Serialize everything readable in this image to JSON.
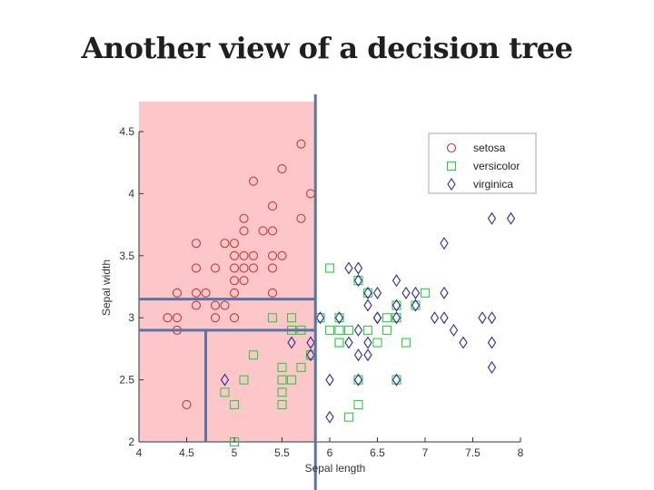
{
  "slide": {
    "title": "Another view of a decision tree"
  },
  "colors": {
    "setosa": "#c0393b",
    "versicolor": "#2ecc40",
    "virginica": "#2c2c9a",
    "region": "#fdc7c9",
    "split": "#5a74a6"
  },
  "chart_data": {
    "type": "scatter",
    "title": "Another view of a decision tree",
    "xlabel": "Sepal length",
    "ylabel": "Sepal width",
    "xlim": [
      4,
      8
    ],
    "ylim": [
      2,
      4.5
    ],
    "xticks": [
      "4",
      "4.5",
      "5",
      "5.5",
      "6",
      "6.5",
      "7",
      "7.5",
      "8"
    ],
    "yticks": [
      "2",
      "2.5",
      "3",
      "3.5",
      "4",
      "4.5"
    ],
    "legend_position": "top-right",
    "region": {
      "label": "setosa region",
      "x": [
        4,
        5.85
      ],
      "y": [
        2,
        4.5
      ]
    },
    "splits": [
      {
        "orientation": "vertical",
        "x": 5.85,
        "y_from": 1.6,
        "y_to": 4.75
      },
      {
        "orientation": "horizontal",
        "y": 3.15,
        "x_from": 4,
        "x_to": 5.85
      },
      {
        "orientation": "horizontal",
        "y": 2.9,
        "x_from": 4,
        "x_to": 5.85
      },
      {
        "orientation": "vertical",
        "x": 4.7,
        "y_from": 2,
        "y_to": 2.9
      }
    ],
    "series": [
      {
        "name": "setosa",
        "marker": "circle",
        "points": [
          [
            5.7,
            4.4
          ],
          [
            5.5,
            4.2
          ],
          [
            5.2,
            4.1
          ],
          [
            5.8,
            4.0
          ],
          [
            5.4,
            3.9
          ],
          [
            5.7,
            3.8
          ],
          [
            5.1,
            3.8
          ],
          [
            5.4,
            3.7
          ],
          [
            5.3,
            3.7
          ],
          [
            5.1,
            3.7
          ],
          [
            5.0,
            3.6
          ],
          [
            4.9,
            3.6
          ],
          [
            4.6,
            3.6
          ],
          [
            5.1,
            3.5
          ],
          [
            5.0,
            3.5
          ],
          [
            5.2,
            3.5
          ],
          [
            5.4,
            3.5
          ],
          [
            5.5,
            3.5
          ],
          [
            5.4,
            3.4
          ],
          [
            5.0,
            3.4
          ],
          [
            4.8,
            3.4
          ],
          [
            4.6,
            3.4
          ],
          [
            5.1,
            3.4
          ],
          [
            5.2,
            3.4
          ],
          [
            5.1,
            3.3
          ],
          [
            5.0,
            3.3
          ],
          [
            5.0,
            3.2
          ],
          [
            4.7,
            3.2
          ],
          [
            4.6,
            3.2
          ],
          [
            4.4,
            3.2
          ],
          [
            5.4,
            3.2
          ],
          [
            4.9,
            3.1
          ],
          [
            4.6,
            3.1
          ],
          [
            4.8,
            3.1
          ],
          [
            5.0,
            3.0
          ],
          [
            4.4,
            3.0
          ],
          [
            4.3,
            3.0
          ],
          [
            4.8,
            3.0
          ],
          [
            4.4,
            2.9
          ],
          [
            4.5,
            2.3
          ]
        ]
      },
      {
        "name": "versicolor",
        "marker": "square",
        "points": [
          [
            6.0,
            3.4
          ],
          [
            6.3,
            3.3
          ],
          [
            6.4,
            3.2
          ],
          [
            6.9,
            3.1
          ],
          [
            6.7,
            3.1
          ],
          [
            6.6,
            3.0
          ],
          [
            6.7,
            3.0
          ],
          [
            5.9,
            3.0
          ],
          [
            5.6,
            3.0
          ],
          [
            5.4,
            3.0
          ],
          [
            6.1,
            3.0
          ],
          [
            6.8,
            2.8
          ],
          [
            6.1,
            2.9
          ],
          [
            6.0,
            2.9
          ],
          [
            5.6,
            2.9
          ],
          [
            5.7,
            2.9
          ],
          [
            5.2,
            2.7
          ],
          [
            6.1,
            2.8
          ],
          [
            6.5,
            2.8
          ],
          [
            6.4,
            2.9
          ],
          [
            6.2,
            2.9
          ],
          [
            6.6,
            2.9
          ],
          [
            7.0,
            3.2
          ],
          [
            6.1,
            2.8
          ],
          [
            5.5,
            2.6
          ],
          [
            5.8,
            2.7
          ],
          [
            6.3,
            2.5
          ],
          [
            6.7,
            2.5
          ],
          [
            5.5,
            2.4
          ],
          [
            5.5,
            2.5
          ],
          [
            5.6,
            2.5
          ],
          [
            5.7,
            2.6
          ],
          [
            4.9,
            2.4
          ],
          [
            5.0,
            2.3
          ],
          [
            5.5,
            2.3
          ],
          [
            6.3,
            2.3
          ],
          [
            6.2,
            2.2
          ],
          [
            5.0,
            2.0
          ],
          [
            5.8,
            2.7
          ],
          [
            5.1,
            2.5
          ]
        ]
      },
      {
        "name": "virginica",
        "marker": "diamond",
        "points": [
          [
            7.7,
            3.8
          ],
          [
            7.9,
            3.8
          ],
          [
            7.2,
            3.6
          ],
          [
            6.2,
            3.4
          ],
          [
            6.3,
            3.4
          ],
          [
            6.3,
            3.3
          ],
          [
            6.7,
            3.3
          ],
          [
            6.4,
            3.2
          ],
          [
            6.5,
            3.2
          ],
          [
            6.9,
            3.2
          ],
          [
            7.2,
            3.2
          ],
          [
            6.8,
            3.2
          ],
          [
            6.4,
            3.1
          ],
          [
            6.9,
            3.1
          ],
          [
            6.7,
            3.1
          ],
          [
            5.9,
            3.0
          ],
          [
            6.1,
            3.0
          ],
          [
            6.5,
            3.0
          ],
          [
            7.1,
            3.0
          ],
          [
            7.6,
            3.0
          ],
          [
            7.7,
            3.0
          ],
          [
            6.7,
            3.0
          ],
          [
            7.2,
            3.0
          ],
          [
            6.3,
            2.9
          ],
          [
            7.3,
            2.9
          ],
          [
            6.5,
            3.0
          ],
          [
            5.6,
            2.8
          ],
          [
            6.2,
            2.8
          ],
          [
            6.4,
            2.8
          ],
          [
            7.4,
            2.8
          ],
          [
            7.7,
            2.8
          ],
          [
            5.8,
            2.8
          ],
          [
            5.8,
            2.7
          ],
          [
            6.3,
            2.7
          ],
          [
            6.4,
            2.7
          ],
          [
            6.0,
            2.5
          ],
          [
            6.7,
            2.5
          ],
          [
            7.7,
            2.6
          ],
          [
            4.9,
            2.5
          ],
          [
            6.3,
            2.5
          ],
          [
            6.0,
            2.2
          ]
        ]
      }
    ]
  }
}
